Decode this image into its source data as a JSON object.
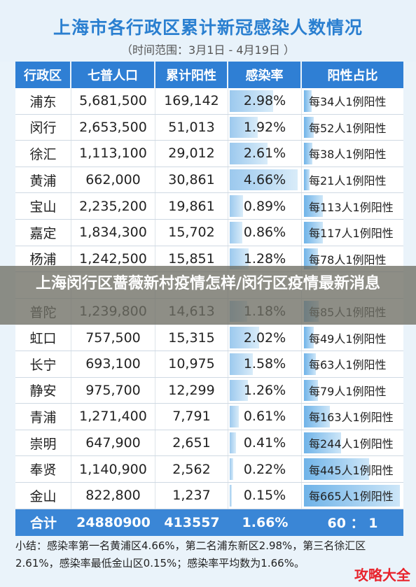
{
  "title": "上海市各行政区累计新冠感染人数情况",
  "subtitle": "（时间范围：3月1日 - 4月19日 ）",
  "overlay_title": "上海闵行区蔷薇新村疫情怎样/闵行区疫情最新消息",
  "watermark": "攻略大全",
  "chart_data": {
    "type": "table",
    "columns": [
      "行政区",
      "七普人口",
      "累计阳性",
      "感染率",
      "阳性占比"
    ],
    "rows": [
      {
        "district": "浦东",
        "population": "5,681,500",
        "positive": "169,142",
        "rate": "2.98%",
        "rate_value": 2.98,
        "ratio": "每34人1例阳性",
        "ratio_n": 34
      },
      {
        "district": "闵行",
        "population": "2,653,500",
        "positive": "51,013",
        "rate": "1.92%",
        "rate_value": 1.92,
        "ratio": "每52人1例阳性",
        "ratio_n": 52
      },
      {
        "district": "徐汇",
        "population": "1,113,100",
        "positive": "29,012",
        "rate": "2.61%",
        "rate_value": 2.61,
        "ratio": "每38人1例阳性",
        "ratio_n": 38
      },
      {
        "district": "黄浦",
        "population": "662,000",
        "positive": "30,861",
        "rate": "4.66%",
        "rate_value": 4.66,
        "ratio": "每21人1例阳性",
        "ratio_n": 21
      },
      {
        "district": "宝山",
        "population": "2,235,200",
        "positive": "19,861",
        "rate": "0.89%",
        "rate_value": 0.89,
        "ratio": "每113人1例阳性",
        "ratio_n": 113
      },
      {
        "district": "嘉定",
        "population": "1,834,300",
        "positive": "15,702",
        "rate": "0.86%",
        "rate_value": 0.86,
        "ratio": "每117人1例阳性",
        "ratio_n": 117
      },
      {
        "district": "杨浦",
        "population": "1,242,500",
        "positive": "15,851",
        "rate": "1.28%",
        "rate_value": 1.28,
        "ratio": "每78人1例阳性",
        "ratio_n": 78
      },
      {
        "district": "",
        "population": "",
        "positive": "",
        "rate": "",
        "rate_value": 0,
        "ratio": "",
        "ratio_n": 0
      },
      {
        "district": "普陀",
        "population": "1,239,800",
        "positive": "14,613",
        "rate": "1.18%",
        "rate_value": 1.18,
        "ratio": "每85人1例阳性",
        "ratio_n": 85
      },
      {
        "district": "虹口",
        "population": "757,500",
        "positive": "15,315",
        "rate": "2.02%",
        "rate_value": 2.02,
        "ratio": "每49人1例阳性",
        "ratio_n": 49
      },
      {
        "district": "长宁",
        "population": "693,100",
        "positive": "10,975",
        "rate": "1.58%",
        "rate_value": 1.58,
        "ratio": "每63人1例阳性",
        "ratio_n": 63
      },
      {
        "district": "静安",
        "population": "975,700",
        "positive": "12,299",
        "rate": "1.26%",
        "rate_value": 1.26,
        "ratio": "每79人1例阳性",
        "ratio_n": 79
      },
      {
        "district": "青浦",
        "population": "1,271,400",
        "positive": "7,791",
        "rate": "0.61%",
        "rate_value": 0.61,
        "ratio": "每163人1例阳性",
        "ratio_n": 163
      },
      {
        "district": "崇明",
        "population": "647,900",
        "positive": "2,651",
        "rate": "0.41%",
        "rate_value": 0.41,
        "ratio": "每244人1例阳性",
        "ratio_n": 244
      },
      {
        "district": "奉贤",
        "population": "1,140,900",
        "positive": "2,562",
        "rate": "0.22%",
        "rate_value": 0.22,
        "ratio": "每445人1例阳性",
        "ratio_n": 445
      },
      {
        "district": "金山",
        "population": "822,800",
        "positive": "1,237",
        "rate": "0.15%",
        "rate_value": 0.15,
        "ratio": "每665人1例阳性",
        "ratio_n": 665
      }
    ],
    "total": {
      "label": "合计",
      "population": "24880900",
      "positive": "413557",
      "rate": "1.66%",
      "ratio": "60 ： 1"
    }
  },
  "summary_text": "小结：感染率第一名黄浦区4.66%，第二名浦东新区2.98%，第三名徐汇区2.61%，感染率最低金山区0.15%；感染率平均数为1.66%。",
  "colors": {
    "header_blue": "#2f7fd4",
    "title_blue": "#2a7fd0",
    "watermark_red": "#e8232c"
  }
}
